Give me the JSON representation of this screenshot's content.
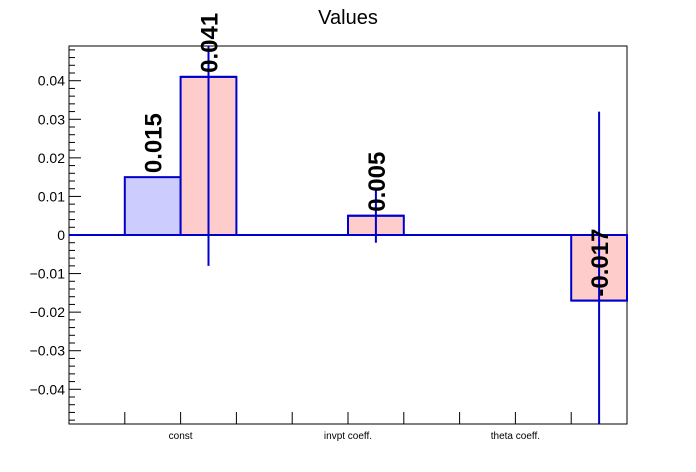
{
  "chart_data": {
    "type": "bar",
    "title": "Values",
    "xlabel": "",
    "ylabel": "",
    "categories": [
      "const",
      "invpt coeff.",
      "theta coeff."
    ],
    "series": [
      {
        "values": [
          0.015,
          null,
          null
        ],
        "errors": [
          null,
          null,
          null
        ]
      },
      {
        "values": [
          0.041,
          0.005,
          -0.017
        ],
        "errors": [
          0.049,
          0.007,
          0.049
        ]
      }
    ],
    "data_labels": [
      "0.015",
      "0.041",
      "0.005",
      "-0.017"
    ],
    "ylim": [
      -0.049,
      0.049
    ],
    "yticks": [
      -0.04,
      -0.03,
      -0.02,
      -0.01,
      0,
      0.01,
      0.02,
      0.03,
      0.04
    ],
    "ytick_labels": [
      "−0.04",
      "−0.03",
      "−0.02",
      "−0.01",
      "0",
      "0.01",
      "0.02",
      "0.03",
      "0.04"
    ],
    "grid": false,
    "colors": {
      "series_blue_fill": "#ccccff",
      "series_red_fill": "#ffcccc",
      "outline": "#0000cc",
      "axis": "#000000"
    }
  }
}
